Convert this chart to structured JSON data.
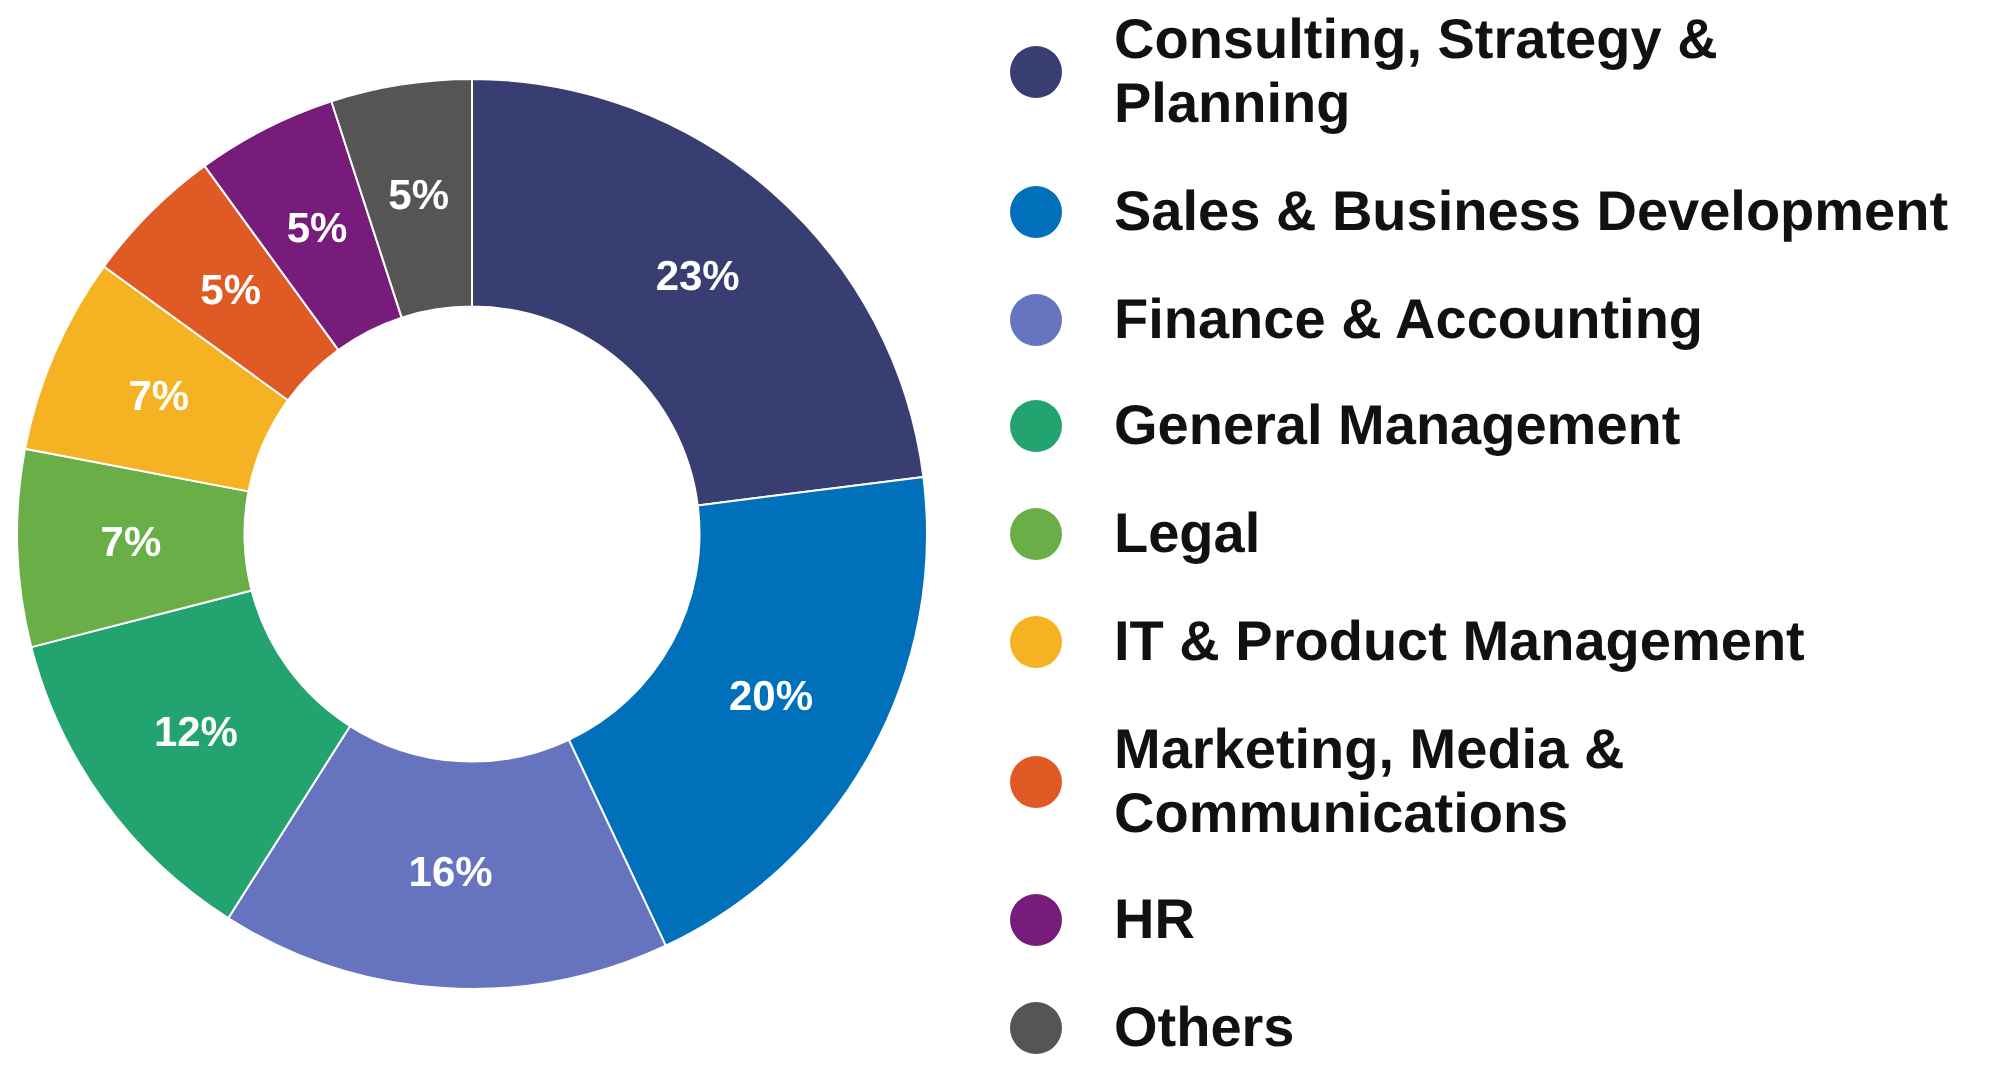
{
  "chart_data": {
    "type": "donut",
    "categories": [
      "Consulting, Strategy & Planning",
      "Sales & Business Development",
      "Finance & Accounting",
      "General Management",
      "Legal",
      "IT & Product Management",
      "Marketing, Media & Communications",
      "HR",
      "Others"
    ],
    "values": [
      23,
      20,
      16,
      12,
      7,
      7,
      5,
      5,
      5
    ],
    "value_labels": [
      "23%",
      "20%",
      "16%",
      "12%",
      "7%",
      "7%",
      "5%",
      "5%",
      "5%"
    ],
    "colors": [
      "#383d72",
      "#0070bb",
      "#6674bf",
      "#23a36f",
      "#6aae48",
      "#f5b324",
      "#e05a25",
      "#771c7a",
      "#555555"
    ],
    "legend": "right"
  }
}
